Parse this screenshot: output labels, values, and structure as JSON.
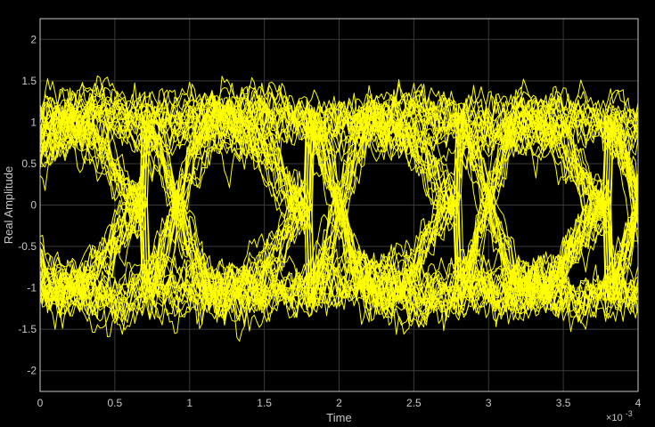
{
  "chart_data": {
    "type": "line",
    "title": "",
    "xlabel": "Time",
    "ylabel": "Real Amplitude",
    "x_exponent_label": "×10",
    "x_exponent_power": "-3",
    "xlim": [
      0,
      4
    ],
    "ylim": [
      -2.25,
      2.25
    ],
    "x_ticks": [
      0,
      0.5,
      1,
      1.5,
      2,
      2.5,
      3,
      3.5,
      4
    ],
    "x_tick_labels": [
      "0",
      "0.5",
      "1",
      "1.5",
      "2",
      "2.5",
      "3",
      "3.5",
      "4"
    ],
    "y_ticks": [
      -2,
      -1.5,
      -1,
      -0.5,
      0,
      0.5,
      1,
      1.5,
      2
    ],
    "y_tick_labels": [
      "-2",
      "-1.5",
      "-1",
      "-0.5",
      "0",
      "0.5",
      "1",
      "1.5",
      "2"
    ],
    "grid": true,
    "legend": "none",
    "symbol_period": 1,
    "num_traces": 70,
    "samples_per_symbol": 60,
    "crossing_times": [
      0.7,
      1.8,
      2.8,
      3.8
    ],
    "series": [
      {
        "values_kind": "eye-diagram traces (noisy binary symbols +1/-1 with sinusoidal transitions)",
        "levels": [
          1,
          -1
        ],
        "noise_amplitude": 0.18,
        "peak_excursion": 1.8,
        "min_excursion": -1.8
      }
    ],
    "colors": {
      "background": "#000000",
      "axes_background": "#000000",
      "trace": "#ffff00",
      "grid": "#3a3a3a",
      "axis": "#c8c8c8"
    }
  }
}
